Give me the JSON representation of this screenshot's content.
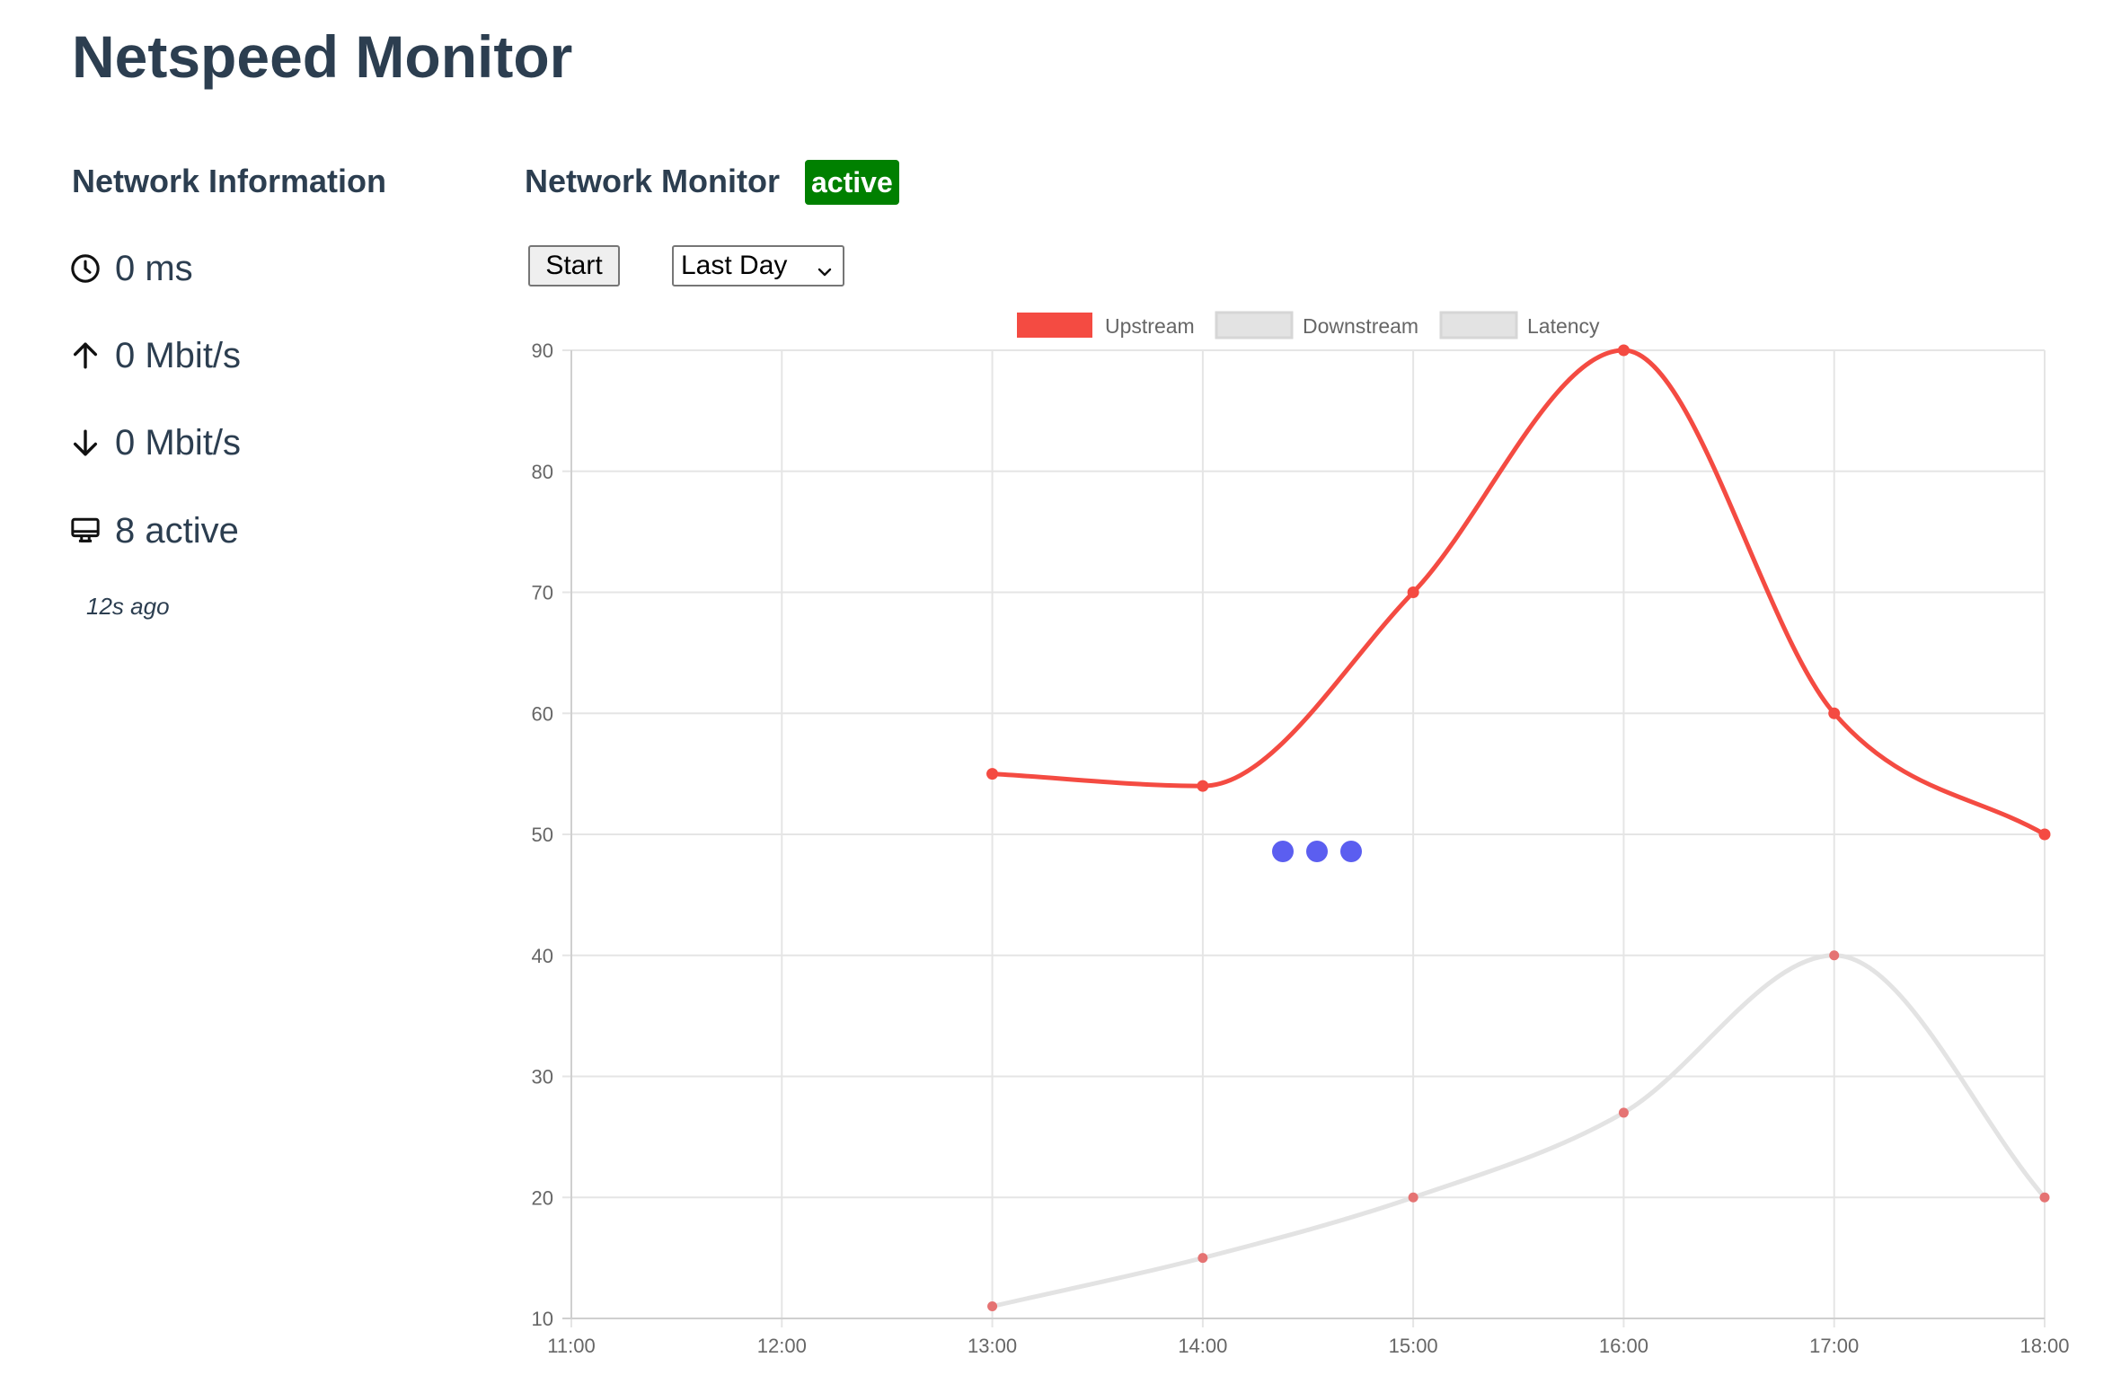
{
  "app": {
    "title": "Netspeed Monitor"
  },
  "sidebar": {
    "title": "Network Information",
    "latency": {
      "icon": "clock-icon",
      "text": "0 ms"
    },
    "upload": {
      "icon": "arrow-up-icon",
      "text": "0 Mbit/s"
    },
    "download": {
      "icon": "arrow-down-icon",
      "text": "0 Mbit/s"
    },
    "devices": {
      "icon": "monitor-icon",
      "text": "8 active"
    },
    "updated": "12s ago"
  },
  "main": {
    "title": "Network Monitor",
    "status_badge": "active",
    "start_button": "Start",
    "range_select": {
      "selected": "Last Day",
      "icon": "chevron-down-icon"
    },
    "loader_icon": "loading-dots-icon"
  },
  "colors": {
    "heading": "#2c3e50",
    "status_active": "#008000",
    "upstream": "#f44b42",
    "downstream": "#e3e3e3",
    "downstream_points": "#e57373",
    "gridline": "#e5e5e5",
    "axis_text": "#666666",
    "loader": "#5b5ef0"
  },
  "chart_data": {
    "type": "line",
    "legend": [
      "Upstream",
      "Downstream",
      "Latency"
    ],
    "legend_placement": "top-center",
    "hidden_series": [
      "Downstream",
      "Latency"
    ],
    "x_ticks": [
      "11:00",
      "12:00",
      "13:00",
      "14:00",
      "15:00",
      "16:00",
      "17:00",
      "18:00"
    ],
    "y_ticks": [
      "10",
      "20",
      "30",
      "40",
      "50",
      "60",
      "70",
      "80",
      "90"
    ],
    "xlim": [
      "11:00",
      "18:00"
    ],
    "ylim": [
      10,
      90
    ],
    "grid": true,
    "series": [
      {
        "name": "Upstream",
        "x": [
          "13:00",
          "14:00",
          "15:00",
          "16:00",
          "17:00",
          "18:00"
        ],
        "values": [
          55,
          54,
          70,
          90,
          60,
          50
        ]
      },
      {
        "name": "Downstream",
        "x": [
          "13:00",
          "14:00",
          "15:00",
          "16:00",
          "17:00",
          "18:00"
        ],
        "values": [
          11,
          15,
          20,
          27,
          40,
          20
        ]
      }
    ]
  }
}
